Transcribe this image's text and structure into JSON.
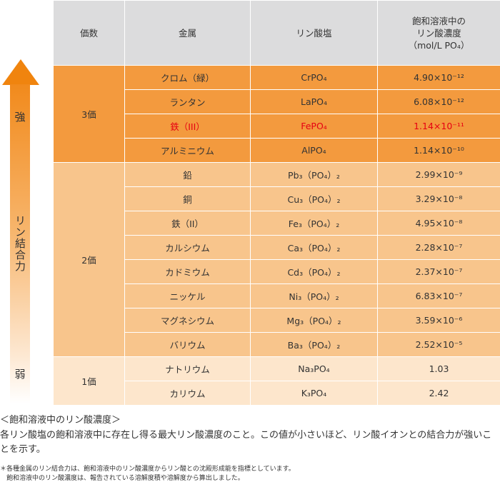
{
  "arrow": {
    "strong": "強",
    "mid": "リン結合力",
    "weak": "弱"
  },
  "headers": {
    "valence": "価数",
    "metal": "金属",
    "salt": "リン酸塩",
    "conc_line1": "飽和溶液中の",
    "conc_line2": "リン酸濃度",
    "conc_line3": "（mol/L PO₄）"
  },
  "groups": [
    {
      "valence": "3価",
      "rows": [
        {
          "metal": "クロム（緑）",
          "salt": "CrPO₄",
          "conc": "4.90×10⁻¹²"
        },
        {
          "metal": "ランタン",
          "salt": "LaPO₄",
          "conc": "6.08×10⁻¹²"
        },
        {
          "metal": "鉄（III）",
          "salt": "FePO₄",
          "conc": "1.14×10⁻¹¹"
        },
        {
          "metal": "アルミニウム",
          "salt": "AlPO₄",
          "conc": "1.14×10⁻¹⁰"
        }
      ]
    },
    {
      "valence": "2価",
      "rows": [
        {
          "metal": "鉛",
          "salt": "Pb₃（PO₄）₂",
          "conc": "2.99×10⁻⁹"
        },
        {
          "metal": "銅",
          "salt": "Cu₃（PO₄）₂",
          "conc": "3.29×10⁻⁸"
        },
        {
          "metal": "鉄（II）",
          "salt": "Fe₃（PO₄）₂",
          "conc": "4.95×10⁻⁸"
        },
        {
          "metal": "カルシウム",
          "salt": "Ca₃（PO₄）₂",
          "conc": "2.28×10⁻⁷"
        },
        {
          "metal": "カドミウム",
          "salt": "Cd₃（PO₄）₂",
          "conc": "2.37×10⁻⁷"
        },
        {
          "metal": "ニッケル",
          "salt": "Ni₃（PO₄）₂",
          "conc": "6.83×10⁻⁷"
        },
        {
          "metal": "マグネシウム",
          "salt": "Mg₃（PO₄）₂",
          "conc": "3.59×10⁻⁶"
        },
        {
          "metal": "バリウム",
          "salt": "Ba₃（PO₄）₂",
          "conc": "2.52×10⁻⁵"
        }
      ]
    },
    {
      "valence": "1価",
      "rows": [
        {
          "metal": "ナトリウム",
          "salt": "Na₃PO₄",
          "conc": "1.03"
        },
        {
          "metal": "カリウム",
          "salt": "K₃PO₄",
          "conc": "2.42"
        }
      ]
    }
  ],
  "highlight_color": "#e60012",
  "notes": {
    "title": "＜飽和溶液中のリン酸濃度＞",
    "body": "各リン酸塩の飽和溶液中に存在し得る最大リン酸濃度のこと。この値が小さいほど、リン酸イオンとの結合力が強いことを示す。",
    "small1": "＊各種金属のリン結合力は、飽和溶液中のリン酸濃度からリン酸との沈殿形成能を指標としています。",
    "small2": "　飽和溶液中のリン酸濃度は、報告されている溶解度積や溶解度から算出しました。"
  }
}
